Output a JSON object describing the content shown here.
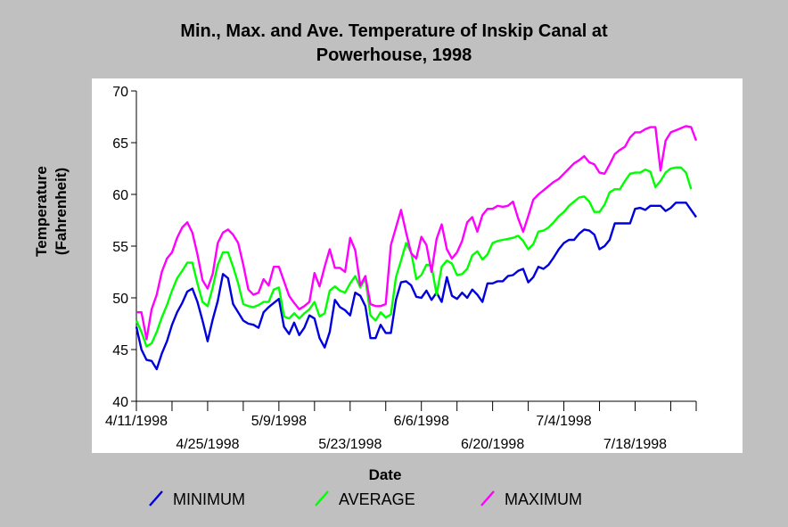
{
  "chart_data": {
    "type": "line",
    "title_lines": [
      "Min., Max. and Ave. Temperature of Inskip Canal at",
      "Powerhouse, 1998"
    ],
    "xlabel": "Date",
    "ylabel_lines": [
      "Temperature",
      "(Fahrenheit)"
    ],
    "ylim": [
      40,
      70
    ],
    "yticks": [
      40,
      45,
      50,
      55,
      60,
      65,
      70
    ],
    "x_start": "4/11/1998",
    "x_range_days": [
      0,
      110
    ],
    "xticks": [
      {
        "label": "4/11/1998",
        "day": 0,
        "row": 1
      },
      {
        "label": "4/25/1998",
        "day": 14,
        "row": 2
      },
      {
        "label": "5/9/1998",
        "day": 28,
        "row": 1
      },
      {
        "label": "5/23/1998",
        "day": 42,
        "row": 2
      },
      {
        "label": "6/6/1998",
        "day": 56,
        "row": 1
      },
      {
        "label": "6/20/1998",
        "day": 70,
        "row": 2
      },
      {
        "label": "7/4/1998",
        "day": 84,
        "row": 1
      },
      {
        "label": "7/18/1998",
        "day": 98,
        "row": 2
      }
    ],
    "x_days": [
      0,
      1,
      2,
      3,
      4,
      5,
      6,
      7,
      8,
      9,
      10,
      11,
      12,
      13,
      14,
      15,
      16,
      17,
      18,
      19,
      20,
      21,
      22,
      23,
      24,
      25,
      26,
      27,
      28,
      29,
      30,
      31,
      32,
      33,
      34,
      35,
      36,
      37,
      38,
      39,
      40,
      41,
      42,
      43,
      44,
      45,
      46,
      47,
      48,
      49,
      50,
      51,
      52,
      53,
      54,
      55,
      56,
      57,
      58,
      59,
      60,
      61,
      62,
      63,
      64,
      65,
      66,
      67,
      68,
      69,
      70,
      71,
      72,
      73,
      74,
      75,
      76,
      77,
      78,
      79,
      80,
      81,
      82,
      83,
      84,
      85,
      86,
      87,
      88,
      89,
      90,
      91,
      92,
      93,
      94,
      95,
      96,
      97,
      98,
      99,
      100,
      101,
      102,
      103,
      104,
      105,
      106,
      107,
      108,
      109,
      110
    ],
    "series": [
      {
        "name": "MINIMUM",
        "color": "#0000dd",
        "values": [
          47.2,
          45.0,
          44.0,
          43.9,
          43.1,
          44.6,
          45.8,
          47.4,
          48.6,
          49.5,
          50.6,
          50.9,
          49.6,
          47.8,
          45.8,
          47.9,
          49.7,
          52.3,
          51.9,
          49.4,
          48.6,
          47.8,
          47.5,
          47.4,
          47.1,
          48.6,
          49.1,
          49.5,
          49.9,
          47.2,
          46.5,
          47.6,
          46.4,
          47.1,
          48.3,
          48.0,
          46.1,
          45.2,
          46.7,
          49.8,
          49.1,
          48.8,
          48.3,
          50.5,
          50.2,
          49.2,
          46.1,
          46.1,
          47.4,
          46.6,
          46.6,
          49.8,
          51.5,
          51.6,
          51.2,
          50.1,
          50.0,
          50.7,
          49.8,
          50.5,
          49.6,
          52.0,
          50.2,
          49.9,
          50.5,
          50.0,
          50.8,
          50.3,
          49.6,
          51.4,
          51.4,
          51.6,
          51.6,
          52.1,
          52.2,
          52.6,
          52.8,
          51.5,
          52.0,
          53.0,
          52.8,
          53.2,
          53.9,
          54.7,
          55.3,
          55.6,
          55.6,
          56.2,
          56.6,
          56.5,
          56.1,
          54.7,
          55.0,
          55.6,
          57.2,
          57.2,
          57.2,
          57.2,
          58.6,
          58.7,
          58.5,
          58.9,
          58.9,
          58.9,
          58.4,
          58.7,
          59.2,
          59.2,
          59.2,
          58.5,
          57.8
        ]
      },
      {
        "name": "AVERAGE",
        "color": "#00ff00",
        "values": [
          47.8,
          46.7,
          45.3,
          45.6,
          46.7,
          48.1,
          49.3,
          50.7,
          51.9,
          52.6,
          53.4,
          53.4,
          51.4,
          49.6,
          49.2,
          51.0,
          53.2,
          54.4,
          54.4,
          53.0,
          51.4,
          49.4,
          49.2,
          49.1,
          49.3,
          49.6,
          49.6,
          50.8,
          51.0,
          48.2,
          48.0,
          48.5,
          48.0,
          48.5,
          48.9,
          49.6,
          48.2,
          48.5,
          50.7,
          51.1,
          50.7,
          50.5,
          51.4,
          52.1,
          51.0,
          51.9,
          48.3,
          47.8,
          48.6,
          48.1,
          48.4,
          52.0,
          53.6,
          55.3,
          54.4,
          51.8,
          52.2,
          53.2,
          53.1,
          50.3,
          53.0,
          53.6,
          53.3,
          52.2,
          52.3,
          52.8,
          54.1,
          54.5,
          53.7,
          54.2,
          55.3,
          55.5,
          55.6,
          55.7,
          55.8,
          56.0,
          55.5,
          54.7,
          55.2,
          56.4,
          56.5,
          56.8,
          57.3,
          57.9,
          58.3,
          58.9,
          59.3,
          59.7,
          59.8,
          59.3,
          58.3,
          58.3,
          59.0,
          60.2,
          60.5,
          60.5,
          61.3,
          62.0,
          62.1,
          62.1,
          62.4,
          62.2,
          60.7,
          61.3,
          62.1,
          62.5,
          62.6,
          62.6,
          62.1,
          60.5
        ]
      },
      {
        "name": "MAXIMUM",
        "color": "#ff00ff",
        "values": [
          48.6,
          48.6,
          46.0,
          48.9,
          50.3,
          52.5,
          53.8,
          54.4,
          55.8,
          56.8,
          57.3,
          56.3,
          54.2,
          51.7,
          50.9,
          52.3,
          55.3,
          56.3,
          56.6,
          56.1,
          55.3,
          53.2,
          50.8,
          50.3,
          50.5,
          51.8,
          51.2,
          53.0,
          53.0,
          51.6,
          50.2,
          49.5,
          48.9,
          49.2,
          49.6,
          52.4,
          51.1,
          53.0,
          54.7,
          52.9,
          52.9,
          52.5,
          55.8,
          54.6,
          51.2,
          52.1,
          49.4,
          49.2,
          49.2,
          49.4,
          55.1,
          56.8,
          58.5,
          56.3,
          54.3,
          53.8,
          55.9,
          55.1,
          52.5,
          55.7,
          57.1,
          54.7,
          53.8,
          54.4,
          55.5,
          57.3,
          57.8,
          56.4,
          58.0,
          58.6,
          58.6,
          58.9,
          58.8,
          58.9,
          59.3,
          57.7,
          56.4,
          57.9,
          59.5,
          60.0,
          60.4,
          60.8,
          61.2,
          61.5,
          62.0,
          62.5,
          63.0,
          63.3,
          63.7,
          63.1,
          62.9,
          62.1,
          62.0,
          62.9,
          63.9,
          64.3,
          64.6,
          65.5,
          66.0,
          66.0,
          66.3,
          66.5,
          66.5,
          62.3,
          65.2,
          66.0,
          66.2,
          66.4,
          66.6,
          66.5,
          65.2
        ]
      }
    ],
    "legend_placement": "bottom"
  }
}
